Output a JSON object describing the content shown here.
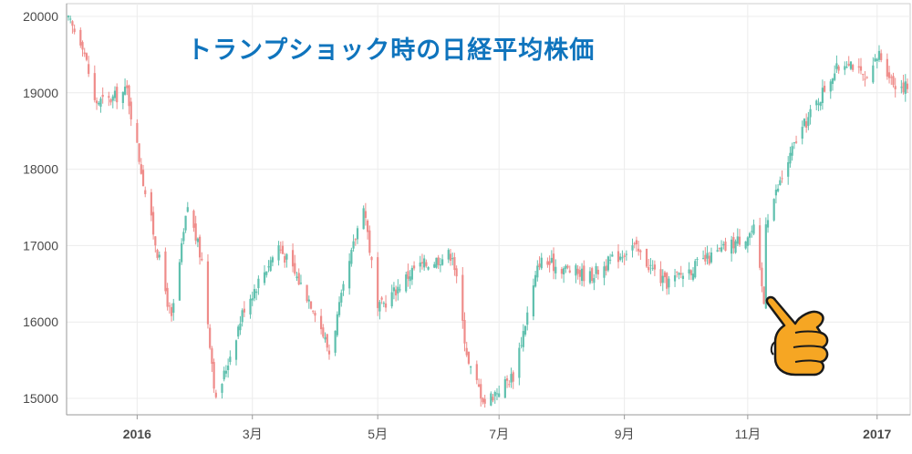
{
  "chart_data": {
    "type": "candlestick",
    "title": "トランプショック時の日経平均株価",
    "ylim": [
      14800,
      20200
    ],
    "y_ticks": [
      15000,
      16000,
      17000,
      18000,
      19000,
      20000
    ],
    "x_range": [
      "2015-12-01",
      "2017-01-19"
    ],
    "x_ticks": [
      {
        "date": "2016-01-04",
        "label": "2016",
        "bold": true
      },
      {
        "date": "2016-03-01",
        "label": "3月",
        "bold": false
      },
      {
        "date": "2016-05-02",
        "label": "5月",
        "bold": false
      },
      {
        "date": "2016-07-01",
        "label": "7月",
        "bold": false
      },
      {
        "date": "2016-09-01",
        "label": "9月",
        "bold": false
      },
      {
        "date": "2016-11-01",
        "label": "11月",
        "bold": false
      },
      {
        "date": "2017-01-04",
        "label": "2017",
        "bold": true
      }
    ],
    "grid": true,
    "colors": {
      "up": "#5fc0ae",
      "down": "#ef8c8a",
      "title": "#0f74bd",
      "grid": "#ececec",
      "axis": "#999999"
    },
    "anchors": [
      {
        "date": "2015-12-01",
        "close": 19938
      },
      {
        "date": "2015-12-08",
        "close": 19650
      },
      {
        "date": "2015-12-14",
        "close": 18880
      },
      {
        "date": "2015-12-21",
        "close": 18900
      },
      {
        "date": "2015-12-30",
        "close": 19033
      },
      {
        "date": "2016-01-08",
        "close": 17700
      },
      {
        "date": "2016-01-21",
        "close": 16017
      },
      {
        "date": "2016-01-29",
        "close": 17518
      },
      {
        "date": "2016-02-05",
        "close": 16800
      },
      {
        "date": "2016-02-12",
        "close": 14952
      },
      {
        "date": "2016-02-26",
        "close": 16200
      },
      {
        "date": "2016-03-14",
        "close": 17000
      },
      {
        "date": "2016-04-01",
        "close": 16164
      },
      {
        "date": "2016-04-08",
        "close": 15600
      },
      {
        "date": "2016-04-25",
        "close": 17572
      },
      {
        "date": "2016-05-02",
        "close": 16147
      },
      {
        "date": "2016-05-20",
        "close": 16700
      },
      {
        "date": "2016-06-08",
        "close": 16900
      },
      {
        "date": "2016-06-16",
        "close": 15434
      },
      {
        "date": "2016-06-24",
        "close": 14952
      },
      {
        "date": "2016-07-08",
        "close": 15300
      },
      {
        "date": "2016-07-21",
        "close": 16800
      },
      {
        "date": "2016-08-15",
        "close": 16600
      },
      {
        "date": "2016-09-05",
        "close": 17000
      },
      {
        "date": "2016-09-21",
        "close": 16500
      },
      {
        "date": "2016-10-14",
        "close": 16850
      },
      {
        "date": "2016-11-04",
        "close": 17200
      },
      {
        "date": "2016-11-09",
        "close": 16251
      },
      {
        "date": "2016-11-10",
        "close": 17344
      },
      {
        "date": "2016-11-25",
        "close": 18380
      },
      {
        "date": "2016-12-13",
        "close": 19250
      },
      {
        "date": "2016-12-21",
        "close": 19444
      },
      {
        "date": "2016-12-30",
        "close": 19114
      },
      {
        "date": "2017-01-05",
        "close": 19520
      },
      {
        "date": "2017-01-12",
        "close": 19134
      },
      {
        "date": "2017-01-19",
        "close": 19072
      }
    ]
  },
  "decoration": {
    "icon": "thumbs-up-hand-icon"
  }
}
